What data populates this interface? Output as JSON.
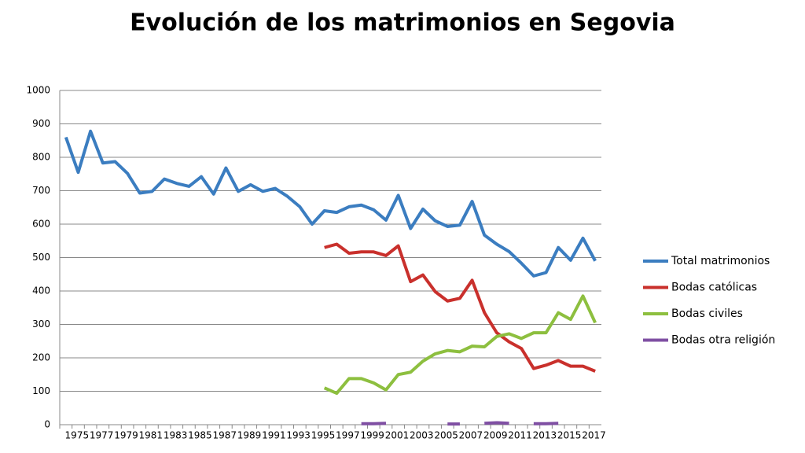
{
  "chart_data": {
    "type": "line",
    "title": "Evolución de los matrimonios en Segovia",
    "categories": [
      "1975",
      null,
      "1977",
      null,
      "1979",
      null,
      "1981",
      null,
      "1983",
      null,
      "1985",
      null,
      "1987",
      null,
      "1989",
      null,
      "1991",
      null,
      "1993",
      null,
      "1995",
      null,
      "1997",
      null,
      "1999",
      null,
      "2001",
      null,
      "2003",
      null,
      "2005",
      null,
      "2007",
      null,
      "2009",
      null,
      "2011",
      null,
      "2013",
      null,
      "2015",
      null,
      "2017",
      null
    ],
    "series": [
      {
        "name": "Total matrimonios",
        "color": "#3b7dc0",
        "values": [
          860,
          755,
          878,
          783,
          787,
          752,
          693,
          698,
          735,
          722,
          713,
          742,
          690,
          768,
          698,
          718,
          698,
          707,
          683,
          652,
          600,
          640,
          635,
          652,
          657,
          643,
          612,
          686,
          587,
          645,
          610,
          593,
          597,
          668,
          567,
          540,
          518,
          483,
          445,
          455,
          530,
          492,
          558,
          490
        ]
      },
      {
        "name": "Bodas católicas",
        "color": "#c9302c",
        "values": [
          null,
          null,
          null,
          null,
          null,
          null,
          null,
          null,
          null,
          null,
          null,
          null,
          null,
          null,
          null,
          null,
          null,
          null,
          null,
          null,
          null,
          530,
          540,
          513,
          517,
          517,
          506,
          535,
          428,
          448,
          398,
          370,
          378,
          432,
          335,
          275,
          248,
          228,
          168,
          178,
          192,
          175,
          175,
          160
        ]
      },
      {
        "name": "Bodas civiles",
        "color": "#8dbf3f",
        "values": [
          null,
          null,
          null,
          null,
          null,
          null,
          null,
          null,
          null,
          null,
          null,
          null,
          null,
          null,
          null,
          null,
          null,
          null,
          null,
          null,
          null,
          110,
          94,
          138,
          138,
          125,
          104,
          150,
          157,
          190,
          212,
          222,
          218,
          235,
          233,
          264,
          272,
          258,
          275,
          275,
          335,
          315,
          385,
          305
        ]
      },
      {
        "name": "Bodas otra religión",
        "color": "#7f4fa3",
        "values": [
          null,
          null,
          null,
          null,
          null,
          null,
          null,
          null,
          null,
          null,
          null,
          null,
          null,
          null,
          null,
          null,
          null,
          null,
          null,
          null,
          null,
          null,
          null,
          null,
          3,
          3,
          4,
          null,
          null,
          null,
          null,
          2,
          2,
          null,
          4,
          6,
          4,
          null,
          3,
          3,
          4,
          null,
          null,
          null
        ]
      }
    ],
    "ylim": [
      0,
      1000
    ],
    "yticks": [
      0,
      100,
      200,
      300,
      400,
      500,
      600,
      700,
      800,
      900,
      1000
    ],
    "grid": true
  }
}
